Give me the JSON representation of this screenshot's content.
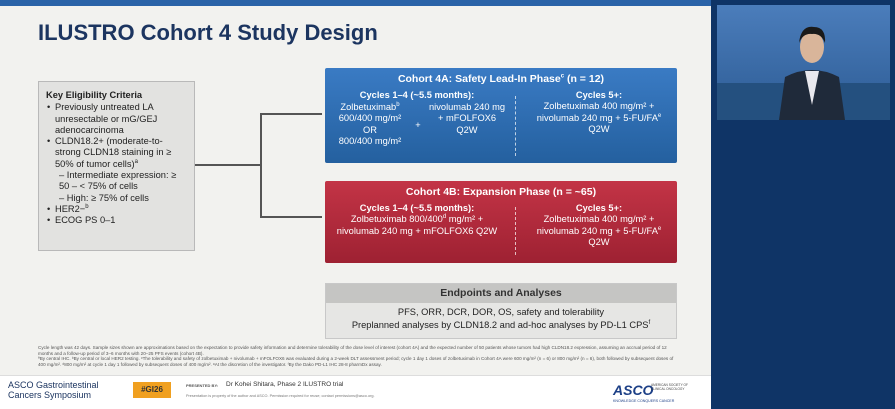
{
  "title": "ILUSTRO Cohort 4 Study Design",
  "eligibility": {
    "heading": "Key Eligibility Criteria",
    "items": [
      "Previously untreated LA unresectable or mG/GEJ adenocarcinoma",
      "CLDN18.2+ (moderate-to-strong CLDN18 staining in ≥ 50% of tumor cells)",
      "– Intermediate expression: ≥ 50 – < 75% of cells",
      "– High: ≥ 75% of cells",
      "HER2−",
      "ECOG PS 0–1"
    ],
    "sups": [
      "a",
      "b"
    ]
  },
  "cohort_4a": {
    "title": "Cohort 4A: Safety Lead-In Phase",
    "title_sup": "c",
    "title_n": "(n = 12)",
    "left_heading": "Cycles 1–4 (~5.5 months):",
    "drug": "Zolbetuximab",
    "drug_sup": "b",
    "dose_1": "600/400 mg/m²",
    "or": "OR",
    "dose_2": "800/400 mg/m²",
    "plus": "+",
    "combo": "nivolumab 240 mg + mFOLFOX6 Q2W",
    "right_heading": "Cycles 5+:",
    "right_text": "Zolbetuximab 400 mg/m² + nivolumab 240 mg + 5-FU/FA",
    "right_sup": "e",
    "right_end": "Q2W"
  },
  "cohort_4b": {
    "title": "Cohort 4B: Expansion Phase (n = ~65)",
    "left_heading": "Cycles 1–4 (~5.5 months):",
    "left_text": "Zolbetuximab 800/400",
    "left_sup": "d",
    "left_end": "mg/m² + nivolumab 240 mg + mFOLFOX6 Q2W",
    "right_heading": "Cycles 5+:",
    "right_text": "Zolbetuximab 400 mg/m² + nivolumab 240 mg + 5-FU/FA",
    "right_sup": "e",
    "right_end": "Q2W"
  },
  "endpoints": {
    "heading": "Endpoints and Analyses",
    "line_1": "PFS, ORR, DCR, DOR, OS, safety and tolerability",
    "line_2": "Preplanned analyses by CLDN18.2 and ad-hoc analyses by PD-L1 CPS",
    "line_2_sup": "f"
  },
  "footnotes": [
    "Cycle length was 42 days. Sample sizes shown are approximations based on the expectation to provide safety information and determine tolerability of the dose level of interest (cohort 4A) and the expected number of 50 patients whose tumors had high CLDN18.2 expression, assuming an accrual period of 12 months and a follow-up period of 3–6 months with 20–25 PFS events (cohort 4B).",
    "ªBy central IHC. ᵇBy central or local HER2 testing. ᶜThe tolerability and safety of zolbetuximab + nivolumab + mFOLFOX6 was evaluated during a 2-week DLT assessment period; cycle 1 day 1 doses of zolbetuximab in Cohort 4A were 600 mg/m² (n = 6) or 800 mg/m² (n = 6), both followed by subsequent doses of 400 mg/m². ᵈ800 mg/m² at cycle 1 day 1 followed by subsequent doses of 400 mg/m². ᵉAt the discretion of the investigator. ᶠBy the Dako PD-L1 IHC 28-8 pharmDx assay."
  ],
  "footer": {
    "meeting_1": "ASCO Gastrointestinal",
    "meeting_2": "Cancers Symposium",
    "hashtag": "#GI26",
    "presented_by": "PRESENTED BY:",
    "presenter": "Dr Kohei Shitara, Phase 2 ILUSTRO trial",
    "permission": "Presentation is property of the author and ASCO. Permission required for reuse; contact permissions@asco.org.",
    "asco": "ASCO",
    "asco_full": "AMERICAN SOCIETY OF CLINICAL ONCOLOGY",
    "tagline": "KNOWLEDGE CONQUERS CANCER"
  }
}
